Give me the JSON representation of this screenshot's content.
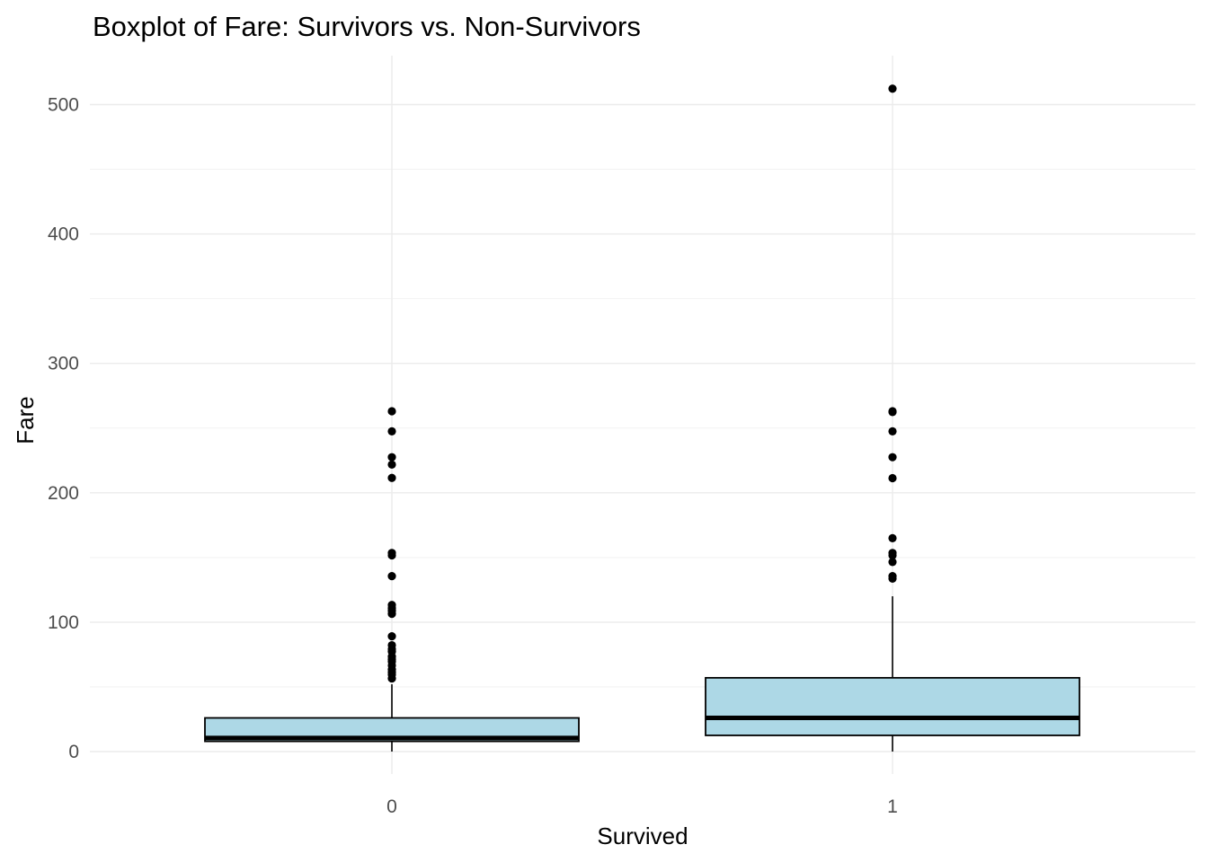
{
  "chart_data": {
    "type": "boxplot",
    "title": "Boxplot of Fare: Survivors vs. Non-Survivors",
    "xlabel": "Survived",
    "ylabel": "Fare",
    "ylim": [
      -25,
      537
    ],
    "yticks": [
      0,
      100,
      200,
      300,
      400,
      500
    ],
    "ytick_labels": [
      "0",
      "100",
      "200",
      "300",
      "400",
      "500"
    ],
    "grid": true,
    "box_fill": "#add8e6",
    "box_stroke": "#000000",
    "groups": [
      {
        "category": "0",
        "whisker_low": 0,
        "q1": 7.9,
        "median": 10.5,
        "q3": 26,
        "whisker_high": 52,
        "outliers": [
          56.5,
          59.4,
          61.2,
          63.4,
          66.6,
          69.55,
          71.3,
          73.5,
          77.3,
          79.2,
          82.2,
          89.1,
          106.4,
          108.9,
          110.9,
          113.3,
          135.6,
          151.6,
          153.5,
          211.5,
          221.8,
          227.5,
          247.5,
          263
        ]
      },
      {
        "category": "1",
        "whisker_low": 0,
        "q1": 12.5,
        "median": 26,
        "q3": 57,
        "whisker_high": 120,
        "outliers": [
          133.7,
          135.6,
          146.5,
          151.6,
          153.5,
          164.9,
          211.3,
          227.5,
          247.5,
          262.4,
          263,
          512.3
        ]
      }
    ]
  }
}
